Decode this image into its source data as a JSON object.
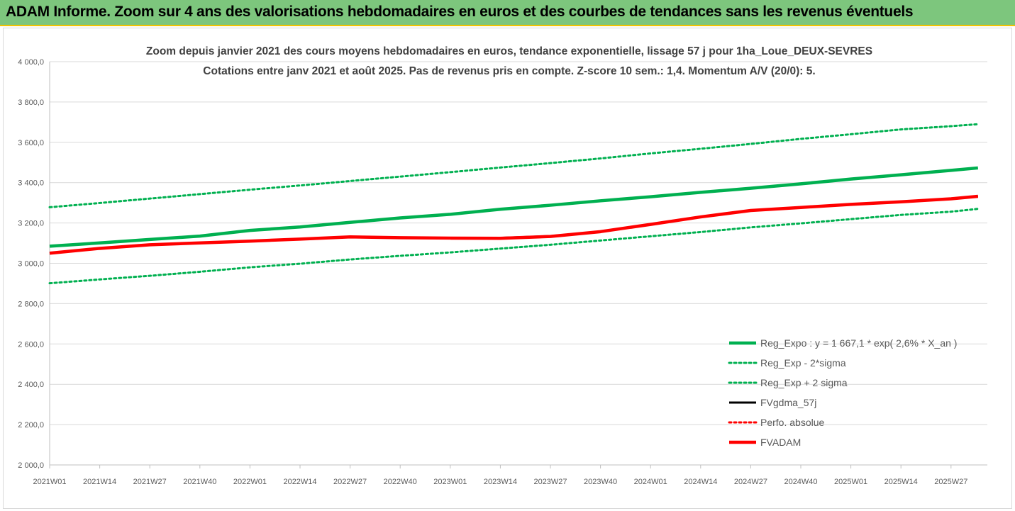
{
  "banner": {
    "title": "ADAM Informe. Zoom sur 4 ans des valorisations hebdomadaires en euros et des courbes de tendances sans les revenus éventuels"
  },
  "colors": {
    "banner_bg": "#7dc67d",
    "reg_expo": "#00b050",
    "fvgdma": "#000000",
    "perfo": "#ff0000",
    "fvadam": "#ff0000",
    "grid": "#d9d9d9"
  },
  "chart_data": {
    "type": "line",
    "title": "Zoom depuis janvier 2021 des cours moyens hebdomadaires en euros, tendance exponentielle, lissage 57 j pour 1ha_Loue_DEUX-SEVRES",
    "subtitle": "Cotations entre janv 2021 et août 2025.  Pas de revenus pris en compte. Z-score 10 sem.: 1,4. Momentum A/V (20/0): 5.",
    "ylim": [
      2000,
      4000
    ],
    "y_ticks": [
      "2 000,0",
      "2 200,0",
      "2 400,0",
      "2 600,0",
      "2 800,0",
      "3 000,0",
      "3 200,0",
      "3 400,0",
      "3 600,0",
      "3 800,0",
      "4 000,0"
    ],
    "x_ticks": [
      "2021W01",
      "2021W14",
      "2021W27",
      "2021W40",
      "2022W01",
      "2022W14",
      "2022W27",
      "2022W40",
      "2023W01",
      "2023W14",
      "2023W27",
      "2023W40",
      "2024W01",
      "2024W14",
      "2024W27",
      "2024W40",
      "2025W01",
      "2025W14",
      "2025W27"
    ],
    "grid": true,
    "legend_position": "bottom-right",
    "x_weeks": [
      0,
      13,
      26,
      39,
      52,
      65,
      78,
      91,
      104,
      117,
      130,
      143,
      156,
      169,
      182,
      195,
      208,
      221,
      234,
      241
    ],
    "series": [
      {
        "name": "Reg_Expo : y = 1 667,1 * exp( 2,6% *  X_an )",
        "style": "solid-thick",
        "color": "#00b050",
        "values": [
          3085,
          3101,
          3118,
          3135,
          3163,
          3180,
          3203,
          3225,
          3243,
          3268,
          3288,
          3310,
          3330,
          3352,
          3372,
          3394,
          3418,
          3439,
          3461,
          3473
        ]
      },
      {
        "name": "Reg_Exp - 2*sigma",
        "style": "dotted",
        "color": "#00b050",
        "values": [
          2901,
          2920,
          2938,
          2958,
          2980,
          2998,
          3019,
          3037,
          3054,
          3073,
          3092,
          3113,
          3134,
          3155,
          3178,
          3198,
          3219,
          3240,
          3256,
          3270
        ]
      },
      {
        "name": "Reg_Exp + 2 sigma",
        "style": "dotted",
        "color": "#00b050",
        "values": [
          3278,
          3299,
          3321,
          3343,
          3365,
          3386,
          3408,
          3430,
          3452,
          3475,
          3497,
          3520,
          3545,
          3568,
          3592,
          3617,
          3640,
          3664,
          3680,
          3690
        ]
      },
      {
        "name": "FVgdma_57j",
        "style": "solid",
        "color": "#000000",
        "values": [
          3050,
          3074,
          3092,
          3101,
          3110,
          3120,
          3131,
          3127,
          3125,
          3126,
          3135,
          3157,
          3193,
          3230,
          3262,
          3277,
          3292,
          3305,
          3320,
          3332
        ]
      },
      {
        "name": "Perfo. absolue",
        "style": "dotted",
        "color": "#ff0000",
        "values": []
      },
      {
        "name": "FVADAM",
        "style": "solid-thick",
        "color": "#ff0000",
        "values": [
          3050,
          3074,
          3092,
          3101,
          3110,
          3120,
          3131,
          3127,
          3125,
          3124,
          3133,
          3157,
          3193,
          3230,
          3262,
          3277,
          3292,
          3305,
          3320,
          3332
        ]
      }
    ]
  }
}
